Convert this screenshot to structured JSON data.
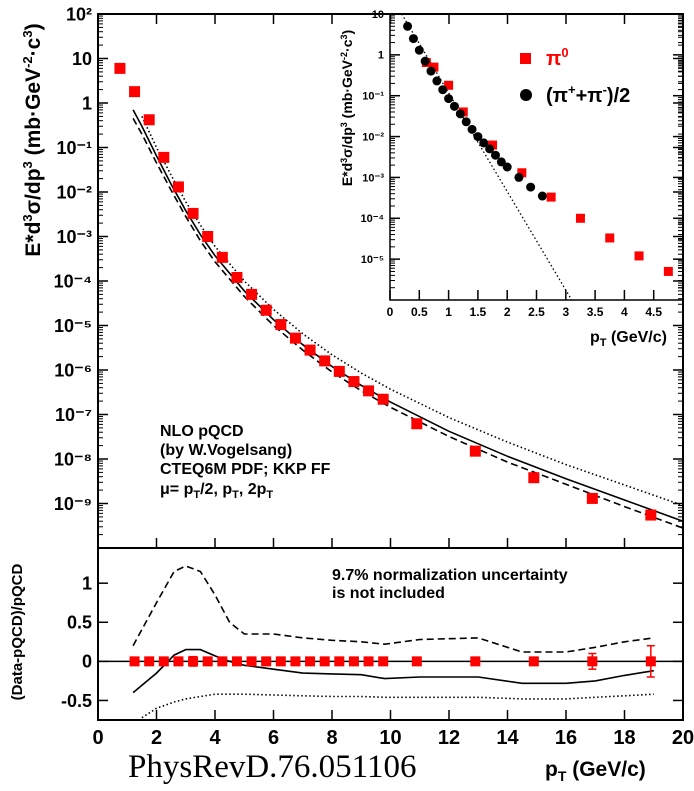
{
  "citation": "PhysRevD.76.051106",
  "chart_data": [
    {
      "type": "scatter",
      "panel": "main",
      "ylabel": "E*d³σ/dp³ (mb·GeV⁻²·c³)",
      "xlim": [
        0,
        20
      ],
      "ylim": [
        1e-10,
        100
      ],
      "yscale": "log",
      "yticks": [
        "10⁻⁹",
        "10⁻⁸",
        "10⁻⁷",
        "10⁻⁶",
        "10⁻⁵",
        "10⁻⁴",
        "10⁻³",
        "10⁻²",
        "10⁻¹",
        "1",
        "10",
        "10²"
      ],
      "annotation": [
        "NLO pQCD",
        "(by W.Vogelsang)",
        "CTEQ6M PDF; KKP FF",
        "μ= p_T/2, p_T, 2p_T"
      ],
      "series": [
        {
          "marker": "square",
          "color": "#ff0000",
          "x": [
            0.75,
            1.25,
            1.75,
            2.25,
            2.75,
            3.25,
            3.75,
            4.25,
            4.75,
            5.25,
            5.75,
            6.25,
            6.75,
            7.25,
            7.75,
            8.25,
            8.75,
            9.25,
            9.75,
            10.9,
            12.9,
            14.9,
            16.9,
            18.9
          ],
          "y": [
            6,
            1.8,
            0.42,
            0.06,
            0.013,
            0.0033,
            0.001,
            0.00034,
            0.00012,
            5e-05,
            2.2e-05,
            1.05e-05,
            5.2e-06,
            2.8e-06,
            1.6e-06,
            9.3e-07,
            5.5e-07,
            3.4e-07,
            2.2e-07,
            6.2e-08,
            1.5e-08,
            3.8e-09,
            1.3e-09,
            5.5e-10
          ]
        }
      ],
      "curves": [
        {
          "style": "solid",
          "x": [
            1.2,
            1.5,
            2,
            2.5,
            3,
            3.5,
            4,
            5,
            6,
            7,
            8,
            9,
            10,
            12,
            14,
            16,
            18,
            20
          ],
          "y": [
            0.7,
            0.3,
            0.065,
            0.015,
            0.0038,
            0.0011,
            0.00037,
            6e-05,
            1.35e-05,
            3.7e-06,
            1.2e-06,
            4.5e-07,
            1.9e-07,
            4.2e-08,
            1.15e-08,
            3.6e-09,
            1.2e-09,
            4e-10
          ]
        },
        {
          "style": "dashed",
          "x": [
            1.2,
            1.5,
            2,
            2.5,
            3,
            3.5,
            4,
            5,
            6,
            7,
            8,
            9,
            10,
            12,
            14,
            16,
            18,
            20
          ],
          "y": [
            0.45,
            0.2,
            0.045,
            0.011,
            0.0028,
            0.0008,
            0.00027,
            4.5e-05,
            1e-05,
            2.8e-06,
            9e-07,
            3.4e-07,
            1.45e-07,
            3.2e-08,
            8.5e-09,
            2.7e-09,
            8.5e-10,
            2.8e-10
          ]
        },
        {
          "style": "dotted",
          "x": [
            1.5,
            2,
            2.5,
            3,
            3.5,
            4,
            5,
            6,
            7,
            8,
            9,
            10,
            12,
            14,
            16,
            18,
            20
          ],
          "y": [
            0.5,
            0.1,
            0.024,
            0.006,
            0.0018,
            0.0006,
            0.0001,
            2.3e-05,
            6.5e-06,
            2.2e-06,
            8.5e-07,
            3.7e-07,
            8.5e-08,
            2.4e-08,
            7.5e-09,
            2.6e-09,
            9e-10
          ]
        }
      ]
    },
    {
      "type": "scatter",
      "panel": "ratio",
      "ylabel": "(Data-pQCD)/pQCD",
      "xlabel": "p_T (GeV/c)",
      "xlim": [
        0,
        20
      ],
      "ylim": [
        -0.75,
        1.45
      ],
      "xticks": [
        "0",
        "2",
        "4",
        "6",
        "8",
        "10",
        "12",
        "14",
        "16",
        "18",
        "20"
      ],
      "yticks": [
        "-0.5",
        "0",
        "0.5",
        "1"
      ],
      "annotation": [
        "9.7% normalization uncertainty",
        "is not included"
      ],
      "series": [
        {
          "marker": "square",
          "color": "#ff0000",
          "x": [
            1.25,
            1.75,
            2.25,
            2.75,
            3.25,
            3.75,
            4.25,
            4.75,
            5.25,
            5.75,
            6.25,
            6.75,
            7.25,
            7.75,
            8.25,
            8.75,
            9.25,
            9.75,
            10.9,
            12.9,
            14.9,
            16.9,
            18.9
          ],
          "y": [
            0,
            0,
            0,
            0,
            0,
            0,
            0,
            0,
            0,
            0,
            0,
            0,
            0,
            0,
            0,
            0,
            0,
            0,
            0,
            0,
            0,
            0,
            0
          ],
          "err": [
            0.02,
            0.02,
            0.02,
            0.02,
            0.06,
            0.03,
            0.02,
            0.02,
            0.02,
            0.02,
            0.02,
            0.02,
            0.02,
            0.02,
            0.02,
            0.02,
            0.02,
            0.02,
            0.02,
            0.04,
            0.05,
            0.1,
            0.2
          ]
        }
      ],
      "curves": [
        {
          "style": "solid",
          "x": [
            1.2,
            2,
            2.6,
            3,
            3.5,
            4,
            4.5,
            5,
            6,
            7,
            8,
            9,
            9.8,
            11,
            13,
            14.5,
            16,
            17,
            18,
            19
          ],
          "y": [
            -0.4,
            -0.15,
            0.08,
            0.15,
            0.15,
            0.07,
            0.0,
            -0.05,
            -0.1,
            -0.15,
            -0.16,
            -0.17,
            -0.22,
            -0.2,
            -0.2,
            -0.28,
            -0.28,
            -0.25,
            -0.18,
            -0.12
          ]
        },
        {
          "style": "dashed",
          "x": [
            1.2,
            2,
            2.6,
            3,
            3.5,
            4,
            4.5,
            5,
            6,
            7,
            8,
            9,
            9.8,
            11,
            13,
            14.5,
            16,
            17,
            18,
            19
          ],
          "y": [
            0.2,
            0.75,
            1.15,
            1.22,
            1.15,
            0.85,
            0.5,
            0.35,
            0.35,
            0.3,
            0.27,
            0.25,
            0.22,
            0.28,
            0.3,
            0.12,
            0.12,
            0.18,
            0.25,
            0.3
          ]
        },
        {
          "style": "dotted",
          "x": [
            1.5,
            2,
            2.6,
            3,
            3.5,
            4,
            4.5,
            5,
            6,
            7,
            8,
            9,
            9.8,
            11,
            13,
            14.5,
            16,
            17,
            18,
            19
          ],
          "y": [
            -0.72,
            -0.6,
            -0.52,
            -0.48,
            -0.45,
            -0.42,
            -0.42,
            -0.42,
            -0.43,
            -0.44,
            -0.45,
            -0.45,
            -0.46,
            -0.46,
            -0.46,
            -0.48,
            -0.48,
            -0.46,
            -0.44,
            -0.42
          ]
        }
      ]
    },
    {
      "type": "scatter",
      "panel": "inset",
      "ylabel": "E*d³σ/dp³ (mb·GeV⁻²·c³)",
      "xlabel": "p_T (GeV/c)",
      "xlim": [
        0,
        5
      ],
      "ylim": [
        1e-05,
        100
      ],
      "yscale": "log",
      "xticks": [
        "0",
        "0.5",
        "1",
        "1.5",
        "2",
        "2.5",
        "3",
        "3.5",
        "4",
        "4.5"
      ],
      "yticks": [
        "10⁻⁵",
        "10⁻⁴",
        "10⁻³",
        "10⁻²",
        "10⁻¹",
        "1",
        "10",
        "10²"
      ],
      "legend": [
        "π⁰",
        "(π⁺+π⁻)/2"
      ],
      "legend_position": "top-right",
      "series": [
        {
          "name": "π⁰",
          "marker": "square",
          "color": "#ff0000",
          "x": [
            0.62,
            0.75,
            1.0,
            1.25,
            1.75,
            2.25,
            2.75,
            3.25,
            3.75,
            4.25,
            4.75
          ],
          "y": [
            6.5,
            5,
            1.8,
            0.4,
            0.062,
            0.013,
            0.0033,
            0.001,
            0.00033,
            0.00012,
            5e-05
          ]
        },
        {
          "name": "(π⁺+π⁻)/2",
          "marker": "circle",
          "color": "#000000",
          "x": [
            0.3,
            0.4,
            0.5,
            0.6,
            0.7,
            0.8,
            0.9,
            1.0,
            1.1,
            1.2,
            1.3,
            1.4,
            1.5,
            1.6,
            1.7,
            1.8,
            1.9,
            2.0,
            2.2,
            2.4,
            2.6
          ],
          "y": [
            50,
            25,
            13,
            7,
            4,
            2.3,
            1.4,
            0.85,
            0.55,
            0.36,
            0.23,
            0.15,
            0.1,
            0.07,
            0.05,
            0.035,
            0.024,
            0.018,
            0.01,
            0.0058,
            0.0035
          ]
        }
      ],
      "curves": [
        {
          "style": "dotted",
          "x": [
            0.2,
            3.1
          ],
          "y": [
            100,
            1e-05
          ]
        }
      ]
    }
  ]
}
